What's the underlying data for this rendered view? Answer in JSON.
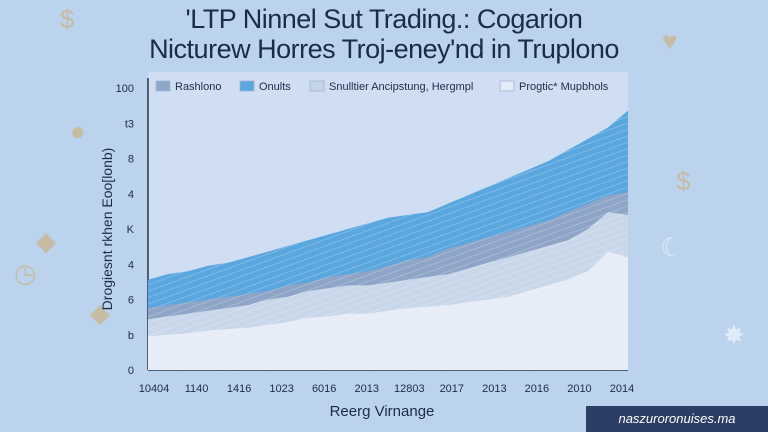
{
  "page": {
    "title_line1": "'LTP Ninnel Sut Trading.: Cogarion",
    "title_line2": "Nicturew Horres Troj-eney'nd in Truplono",
    "footer_brand": "naszuroronuises.ma"
  },
  "decor": {
    "icons": [
      "dollar-icon",
      "coin-icon",
      "piggy-bank-icon",
      "house-icon",
      "gear-icon",
      "heart-icon",
      "dollar-icon",
      "coin-icon",
      "piggy-bank-icon",
      "gear-icon",
      "moon-icon",
      "diamond-icon",
      "clock-icon"
    ]
  },
  "chart_data": {
    "type": "area",
    "title": "",
    "xlabel": "Reerg Virnange",
    "ylabel": "Drogiesnt rkhen Eoo[lonb)",
    "x_ticks": [
      "10404",
      "1140",
      "1416",
      "1023",
      "6016",
      "2013",
      "12803",
      "2017",
      "2013",
      "2016",
      "2010",
      "2014"
    ],
    "y_ticks": [
      "0",
      "b",
      "6",
      "4",
      "K",
      "4",
      "8",
      "t3",
      "100"
    ],
    "ylim": [
      0,
      100
    ],
    "legend_position": "top",
    "legend": [
      {
        "label": "Rashlono",
        "color": "#8fa6c8"
      },
      {
        "label": "Onults",
        "color": "#5aa7df"
      },
      {
        "label": "Snulltier Ancipstung, Hergmpl",
        "color": "#c5d5ea"
      },
      {
        "label": "Progtic* Mupbhols",
        "color": "#e3ebf6"
      }
    ],
    "x": [
      0,
      1,
      2,
      3,
      4,
      5,
      6,
      7,
      8,
      9,
      10,
      11,
      12,
      13,
      14,
      15,
      16,
      17,
      18,
      19,
      20,
      21,
      22,
      23,
      24
    ],
    "series": [
      {
        "name": "Progtic* Mupbhols",
        "color": "#e6edf6",
        "values": [
          12,
          12.5,
          13,
          14,
          14.5,
          15,
          16,
          17,
          18.5,
          19,
          20,
          20,
          21,
          22,
          22.5,
          23,
          24,
          25,
          26,
          28,
          30,
          32,
          35,
          42,
          40
        ]
      },
      {
        "name": "Snulltier Ancipstung, Hergmpl",
        "color": "#c9d7ea",
        "values": [
          18,
          19,
          20,
          21,
          22,
          23,
          25,
          26,
          28,
          29,
          30,
          30,
          31,
          32,
          33,
          34,
          36,
          38,
          40,
          42,
          44,
          46,
          50,
          56,
          55
        ]
      },
      {
        "name": "Rashlono",
        "color": "#8ea5c8",
        "values": [
          22,
          23,
          24,
          25,
          26,
          27,
          28,
          30,
          31,
          33,
          34,
          35,
          37,
          39,
          40,
          43,
          45,
          47,
          49,
          51,
          53,
          56,
          59,
          62,
          63
        ]
      },
      {
        "name": "Onults",
        "color": "#5aa7df",
        "values": [
          32,
          34,
          35,
          37,
          38,
          40,
          42,
          44,
          46,
          48,
          50,
          52,
          54,
          55,
          56,
          59,
          62,
          65,
          68,
          71,
          74,
          78,
          82,
          86,
          92
        ]
      }
    ]
  }
}
